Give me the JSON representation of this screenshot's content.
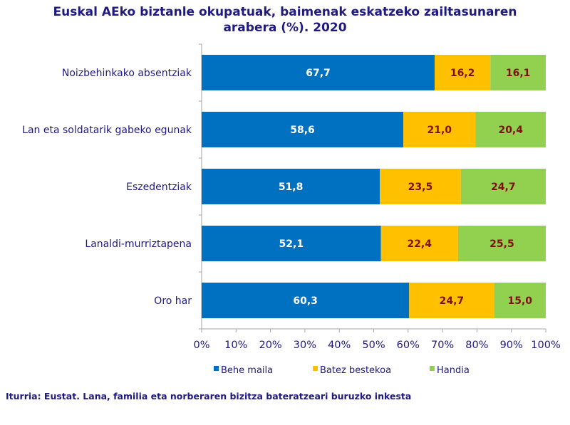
{
  "chart_data": {
    "type": "bar",
    "orientation": "horizontal",
    "stacked": true,
    "title_lines": [
      "Euskal AEko biztanle okupatuak, baimenak eskatzeko zailtasunaren",
      "arabera (%). 2020"
    ],
    "categories": [
      "Noizbehinkako absentziak",
      "Lan eta soldatarik gabeko egunak",
      "Eszedentziak",
      "Lanaldi-murriztapena",
      "Oro har"
    ],
    "series": [
      {
        "name": "Behe maila",
        "color": "#0070c0",
        "label_color": "#ffffff",
        "values": [
          67.7,
          58.6,
          51.8,
          52.1,
          60.3
        ],
        "labels": [
          "67,7",
          "58,6",
          "51,8",
          "52,1",
          "60,3"
        ]
      },
      {
        "name": "Batez bestekoa",
        "color": "#ffc000",
        "label_color": "#7f1010",
        "values": [
          16.2,
          21.0,
          23.5,
          22.4,
          24.7
        ],
        "labels": [
          "16,2",
          "21,0",
          "23,5",
          "22,4",
          "24,7"
        ]
      },
      {
        "name": "Handia",
        "color": "#92d050",
        "label_color": "#7f1010",
        "values": [
          16.1,
          20.4,
          24.7,
          25.5,
          15.0
        ],
        "labels": [
          "16,1",
          "20,4",
          "24,7",
          "25,5",
          "15,0"
        ]
      }
    ],
    "xlim": [
      0,
      100
    ],
    "xticks": [
      "0%",
      "10%",
      "20%",
      "30%",
      "40%",
      "50%",
      "60%",
      "70%",
      "80%",
      "90%",
      "100%"
    ],
    "legend_position": "bottom",
    "grid": false
  },
  "source": "Iturria: Eustat. Lana, familia eta norberaren bizitza bateratzeari buruzko inkesta"
}
